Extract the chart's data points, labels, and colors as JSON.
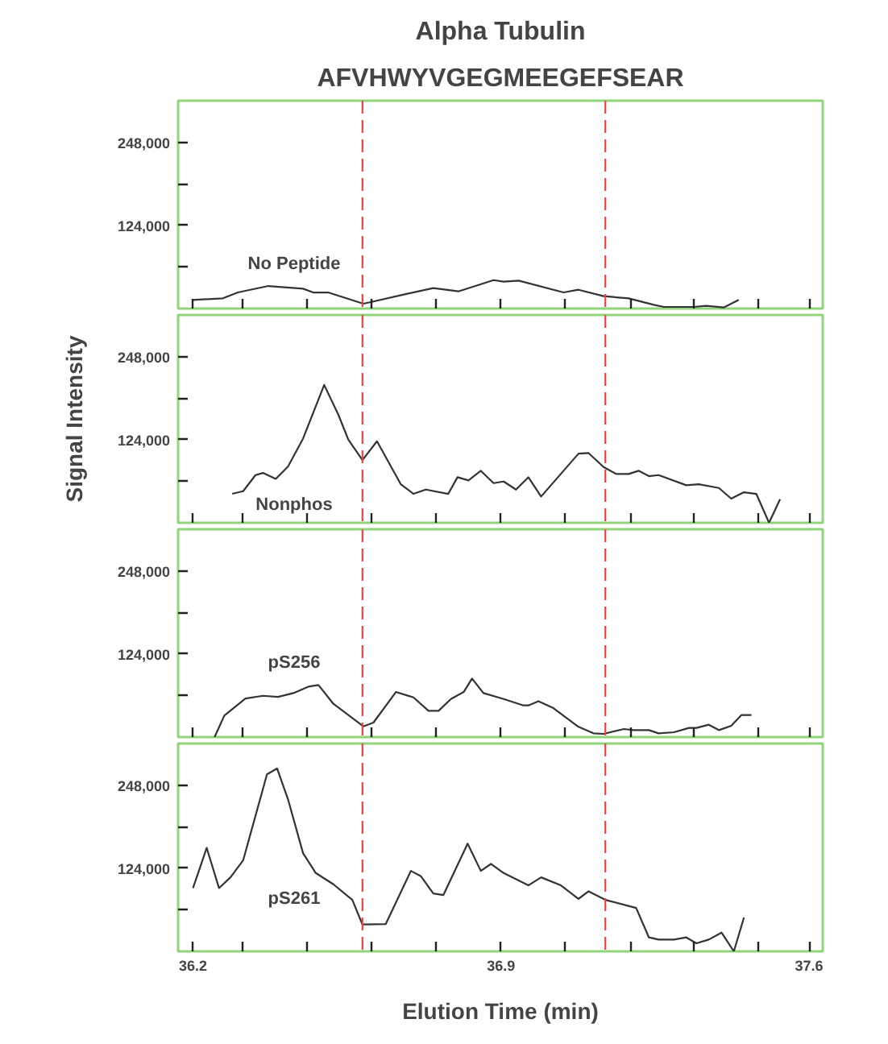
{
  "chart_data": [
    {
      "type": "line",
      "title": "Alpha Tubulin",
      "subtitle": "AFVHWYVGEGMEEGEFSEAR",
      "tick_labels": "y",
      "grid": false,
      "legend": false,
      "marker": "none",
      "line_style": "solid",
      "xlim": [
        36.166,
        37.631
      ],
      "ylim": [
        0,
        310000
      ],
      "xticks": [
        {
          "value": 36.2,
          "label": null
        },
        {
          "value": 36.314,
          "label": null
        },
        {
          "value": 36.46,
          "label": null
        },
        {
          "value": 36.604,
          "label": null
        },
        {
          "value": 36.752,
          "label": null
        },
        {
          "value": 36.9,
          "label": null
        },
        {
          "value": 37.046,
          "label": null
        },
        {
          "value": 37.194,
          "label": null
        },
        {
          "value": 37.338,
          "label": null
        },
        {
          "value": 37.486,
          "label": null
        },
        {
          "value": 37.6,
          "label": null
        }
      ],
      "yticks": [
        {
          "value": 62000,
          "label": null
        },
        {
          "value": 124000,
          "label": "124,000"
        },
        {
          "value": 186000,
          "label": null
        },
        {
          "value": 248000,
          "label": "248,000"
        }
      ],
      "ref_lines": [
        {
          "axis": "x",
          "value": 36.585,
          "color": "#e04848",
          "line_style": "dashed"
        },
        {
          "axis": "x",
          "value": 37.137,
          "color": "#e04848",
          "line_style": "dashed"
        }
      ],
      "series": [
        {
          "name": "No Peptide",
          "color": "#333333",
          "x": [
            36.198,
            36.268,
            36.302,
            36.371,
            36.45,
            36.473,
            36.507,
            36.587,
            36.604,
            36.689,
            36.746,
            36.803,
            36.883,
            36.906,
            36.94,
            37.042,
            37.076,
            37.133,
            37.19,
            37.247,
            37.27,
            37.338,
            37.366,
            37.406,
            37.44
          ],
          "values": [
            12800,
            15200,
            24000,
            33600,
            29600,
            24000,
            24000,
            7200,
            9600,
            22400,
            30400,
            25600,
            42400,
            40000,
            41600,
            24000,
            28000,
            18400,
            15200,
            5600,
            2400,
            2400,
            4000,
            1600,
            12800
          ]
        }
      ]
    },
    {
      "type": "line",
      "tick_labels": "y",
      "grid": false,
      "legend": false,
      "marker": "none",
      "line_style": "solid",
      "xlim": [
        36.166,
        37.631
      ],
      "ylim": [
        0,
        310000
      ],
      "xticks": [
        {
          "value": 36.2,
          "label": null
        },
        {
          "value": 36.314,
          "label": null
        },
        {
          "value": 36.46,
          "label": null
        },
        {
          "value": 36.604,
          "label": null
        },
        {
          "value": 36.752,
          "label": null
        },
        {
          "value": 36.9,
          "label": null
        },
        {
          "value": 37.046,
          "label": null
        },
        {
          "value": 37.194,
          "label": null
        },
        {
          "value": 37.338,
          "label": null
        },
        {
          "value": 37.486,
          "label": null
        },
        {
          "value": 37.6,
          "label": null
        }
      ],
      "yticks": [
        {
          "value": 62000,
          "label": null
        },
        {
          "value": 124000,
          "label": "124,000"
        },
        {
          "value": 186000,
          "label": null
        },
        {
          "value": 248000,
          "label": "248,000"
        }
      ],
      "ref_lines": [
        {
          "axis": "x",
          "value": 36.585,
          "color": "#e04848",
          "line_style": "dashed"
        },
        {
          "axis": "x",
          "value": 37.137,
          "color": "#e04848",
          "line_style": "dashed"
        }
      ],
      "ylabel": "Signal Intensity",
      "series": [
        {
          "name": "Nonphos",
          "color": "#333333",
          "x": [
            36.289,
            36.314,
            36.342,
            36.359,
            36.388,
            36.416,
            36.45,
            36.498,
            36.53,
            36.553,
            36.585,
            36.618,
            36.672,
            36.701,
            36.729,
            36.78,
            36.801,
            36.826,
            36.854,
            36.883,
            36.906,
            36.934,
            36.962,
            36.991,
            37.076,
            37.099,
            37.133,
            37.162,
            37.19,
            37.213,
            37.236,
            37.258,
            37.321,
            37.349,
            37.395,
            37.423,
            37.452,
            37.48,
            37.509,
            37.534
          ],
          "values": [
            43200,
            47200,
            71200,
            74400,
            65600,
            84000,
            125600,
            205600,
            161600,
            124000,
            93600,
            121600,
            57600,
            43200,
            49600,
            43200,
            68000,
            63200,
            77600,
            59200,
            61600,
            49600,
            68000,
            39200,
            103200,
            104000,
            83200,
            72800,
            72800,
            77600,
            69600,
            71200,
            56000,
            57600,
            52000,
            36000,
            45600,
            43200,
            0,
            35200
          ]
        }
      ]
    },
    {
      "type": "line",
      "tick_labels": "y",
      "grid": false,
      "legend": false,
      "marker": "none",
      "line_style": "solid",
      "xlim": [
        36.166,
        37.631
      ],
      "ylim": [
        0,
        310000
      ],
      "xticks": [
        {
          "value": 36.2,
          "label": null
        },
        {
          "value": 36.314,
          "label": null
        },
        {
          "value": 36.46,
          "label": null
        },
        {
          "value": 36.604,
          "label": null
        },
        {
          "value": 36.752,
          "label": null
        },
        {
          "value": 36.9,
          "label": null
        },
        {
          "value": 37.046,
          "label": null
        },
        {
          "value": 37.194,
          "label": null
        },
        {
          "value": 37.338,
          "label": null
        },
        {
          "value": 37.486,
          "label": null
        },
        {
          "value": 37.6,
          "label": null
        }
      ],
      "yticks": [
        {
          "value": 62000,
          "label": null
        },
        {
          "value": 124000,
          "label": "124,000"
        },
        {
          "value": 186000,
          "label": null
        },
        {
          "value": 248000,
          "label": "248,000"
        }
      ],
      "ref_lines": [
        {
          "axis": "x",
          "value": 36.585,
          "color": "#e04848",
          "line_style": "dashed"
        },
        {
          "axis": "x",
          "value": 37.137,
          "color": "#e04848",
          "line_style": "dashed"
        }
      ],
      "series": [
        {
          "name": "pS256",
          "color": "#333333",
          "x": [
            36.249,
            36.271,
            36.319,
            36.359,
            36.393,
            36.428,
            36.462,
            36.485,
            36.519,
            36.587,
            36.61,
            36.661,
            36.701,
            36.735,
            36.758,
            36.786,
            36.815,
            36.834,
            36.86,
            36.906,
            36.951,
            36.962,
            36.985,
            37.019,
            37.076,
            37.11,
            37.133,
            37.179,
            37.201,
            37.236,
            37.258,
            37.293,
            37.327,
            37.344,
            37.372,
            37.395,
            37.423,
            37.446,
            37.469
          ],
          "values": [
            0,
            32000,
            57600,
            61600,
            60000,
            65600,
            75200,
            77600,
            49600,
            16000,
            21600,
            67200,
            59200,
            39200,
            39200,
            56800,
            67200,
            87200,
            65600,
            56800,
            47200,
            47200,
            53600,
            43200,
            15200,
            5600,
            4800,
            12000,
            10400,
            10400,
            5600,
            7200,
            13600,
            13600,
            18400,
            10400,
            16800,
            32800,
            32800
          ]
        }
      ]
    },
    {
      "type": "line",
      "xlabel": "Elution Time (min)",
      "grid": false,
      "legend": false,
      "marker": "none",
      "line_style": "solid",
      "xlim": [
        36.166,
        37.631
      ],
      "ylim": [
        0,
        310000
      ],
      "xticks": [
        36.2,
        {
          "value": 36.314,
          "label": null
        },
        {
          "value": 36.46,
          "label": null
        },
        {
          "value": 36.604,
          "label": null
        },
        {
          "value": 36.752,
          "label": null
        },
        36.9,
        {
          "value": 37.046,
          "label": null
        },
        {
          "value": 37.194,
          "label": null
        },
        {
          "value": 37.338,
          "label": null
        },
        {
          "value": 37.486,
          "label": null
        },
        37.6
      ],
      "yticks": [
        {
          "value": 62000,
          "label": null
        },
        {
          "value": 124000,
          "label": "124,000"
        },
        {
          "value": 186000,
          "label": null
        },
        {
          "value": 248000,
          "label": "248,000"
        }
      ],
      "ref_lines": [
        {
          "axis": "x",
          "value": 36.585,
          "color": "#e04848",
          "line_style": "dashed"
        },
        {
          "axis": "x",
          "value": 37.137,
          "color": "#e04848",
          "line_style": "dashed"
        }
      ],
      "series": [
        {
          "name": "pS261",
          "color": "#333333",
          "x": [
            36.2,
            36.231,
            36.259,
            36.285,
            36.314,
            36.368,
            36.391,
            36.416,
            36.45,
            36.479,
            36.519,
            36.562,
            36.585,
            36.638,
            36.695,
            36.718,
            36.746,
            36.769,
            36.824,
            36.854,
            36.877,
            36.906,
            36.962,
            36.991,
            37.036,
            37.076,
            37.099,
            37.137,
            37.207,
            37.236,
            37.258,
            37.293,
            37.321,
            37.344,
            37.372,
            37.401,
            37.429,
            37.452
          ],
          "values": [
            94400,
            154400,
            94400,
            110400,
            136000,
            264000,
            272800,
            226400,
            146400,
            116800,
            100000,
            76800,
            40000,
            40800,
            120000,
            112000,
            86400,
            84000,
            160800,
            120000,
            130400,
            116800,
            98400,
            110400,
            98400,
            78400,
            89600,
            76800,
            64800,
            20800,
            17600,
            17600,
            20800,
            12000,
            17600,
            28000,
            0,
            50400
          ]
        }
      ]
    }
  ]
}
